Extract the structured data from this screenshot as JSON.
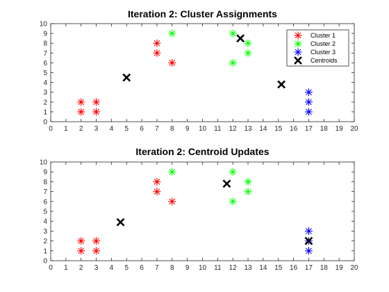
{
  "chart_data": [
    {
      "type": "scatter",
      "title": "Iteration 2: Cluster Assignments",
      "xlabel": "",
      "ylabel": "",
      "xlim": [
        0,
        20
      ],
      "ylim": [
        0,
        10
      ],
      "xticks": [
        "0",
        "1",
        "2",
        "3",
        "4",
        "5",
        "6",
        "7",
        "8",
        "9",
        "10",
        "11",
        "12",
        "13",
        "14",
        "15",
        "16",
        "17",
        "18",
        "19",
        "20"
      ],
      "yticks": [
        "0",
        "1",
        "2",
        "3",
        "4",
        "5",
        "6",
        "7",
        "8",
        "9",
        "10"
      ],
      "grid": false,
      "legend": {
        "placement": "top-right"
      },
      "series": [
        {
          "name": "Cluster 1",
          "marker": "asterisk",
          "color": "#ff0000",
          "points": [
            [
              2,
              1
            ],
            [
              2,
              2
            ],
            [
              3,
              1
            ],
            [
              3,
              2
            ],
            [
              7,
              7
            ],
            [
              7,
              8
            ],
            [
              8,
              6
            ]
          ]
        },
        {
          "name": "Cluster 2",
          "marker": "asterisk",
          "color": "#00ff00",
          "points": [
            [
              8,
              9
            ],
            [
              12,
              6
            ],
            [
              12,
              9
            ],
            [
              13,
              7
            ],
            [
              13,
              8
            ]
          ]
        },
        {
          "name": "Cluster 3",
          "marker": "asterisk",
          "color": "#0000ff",
          "points": [
            [
              17,
              1
            ],
            [
              17,
              2
            ],
            [
              17,
              3
            ]
          ]
        },
        {
          "name": "Centroids",
          "marker": "x",
          "color": "#000000",
          "points": [
            [
              5,
              4.5
            ],
            [
              12.5,
              8.5
            ],
            [
              15.2,
              3.8
            ]
          ]
        }
      ]
    },
    {
      "type": "scatter",
      "title": "Iteration 2: Centroid Updates",
      "xlabel": "",
      "ylabel": "",
      "xlim": [
        0,
        20
      ],
      "ylim": [
        0,
        10
      ],
      "xticks": [
        "0",
        "1",
        "2",
        "3",
        "4",
        "5",
        "6",
        "7",
        "8",
        "9",
        "10",
        "11",
        "12",
        "13",
        "14",
        "15",
        "16",
        "17",
        "18",
        "19",
        "20"
      ],
      "yticks": [
        "0",
        "1",
        "2",
        "3",
        "4",
        "5",
        "6",
        "7",
        "8",
        "9",
        "10"
      ],
      "grid": false,
      "series": [
        {
          "marker": "asterisk",
          "color": "#ff0000",
          "points": [
            [
              2,
              1
            ],
            [
              2,
              2
            ],
            [
              3,
              1
            ],
            [
              3,
              2
            ],
            [
              7,
              7
            ],
            [
              7,
              8
            ],
            [
              8,
              6
            ]
          ]
        },
        {
          "marker": "asterisk",
          "color": "#00ff00",
          "points": [
            [
              8,
              9
            ],
            [
              12,
              6
            ],
            [
              12,
              9
            ],
            [
              13,
              7
            ],
            [
              13,
              8
            ]
          ]
        },
        {
          "marker": "asterisk",
          "color": "#0000ff",
          "points": [
            [
              17,
              1
            ],
            [
              17,
              2
            ],
            [
              17,
              3
            ]
          ]
        },
        {
          "marker": "x",
          "color": "#000000",
          "points": [
            [
              4.6,
              3.9
            ],
            [
              11.6,
              7.8
            ],
            [
              17,
              2
            ]
          ]
        }
      ]
    }
  ]
}
